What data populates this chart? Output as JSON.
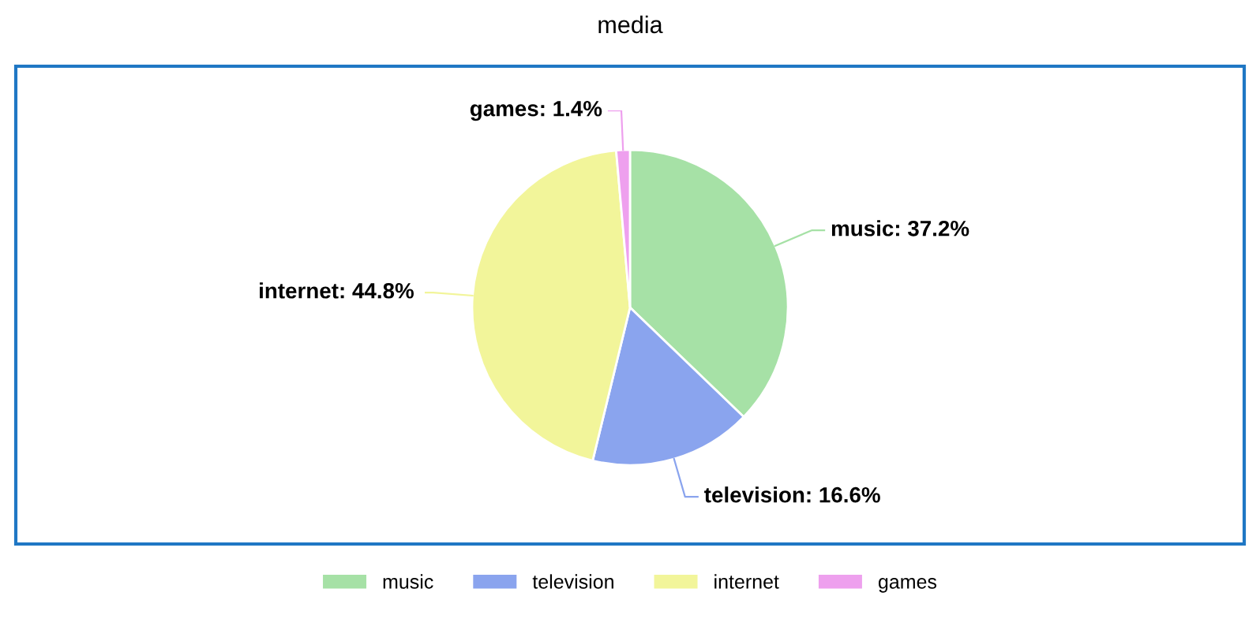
{
  "chart_data": {
    "type": "pie",
    "title": "media",
    "categories": [
      "music",
      "television",
      "internet",
      "games"
    ],
    "values": [
      37.2,
      16.6,
      44.8,
      1.4
    ],
    "value_labels": [
      "music: 37.2%",
      "television: 16.6%",
      "internet: 44.8%",
      "games: 1.4%"
    ],
    "colors": [
      "#a6e1a6",
      "#8aa4ee",
      "#f2f59a",
      "#eea0ee"
    ],
    "legend": "bottom"
  }
}
